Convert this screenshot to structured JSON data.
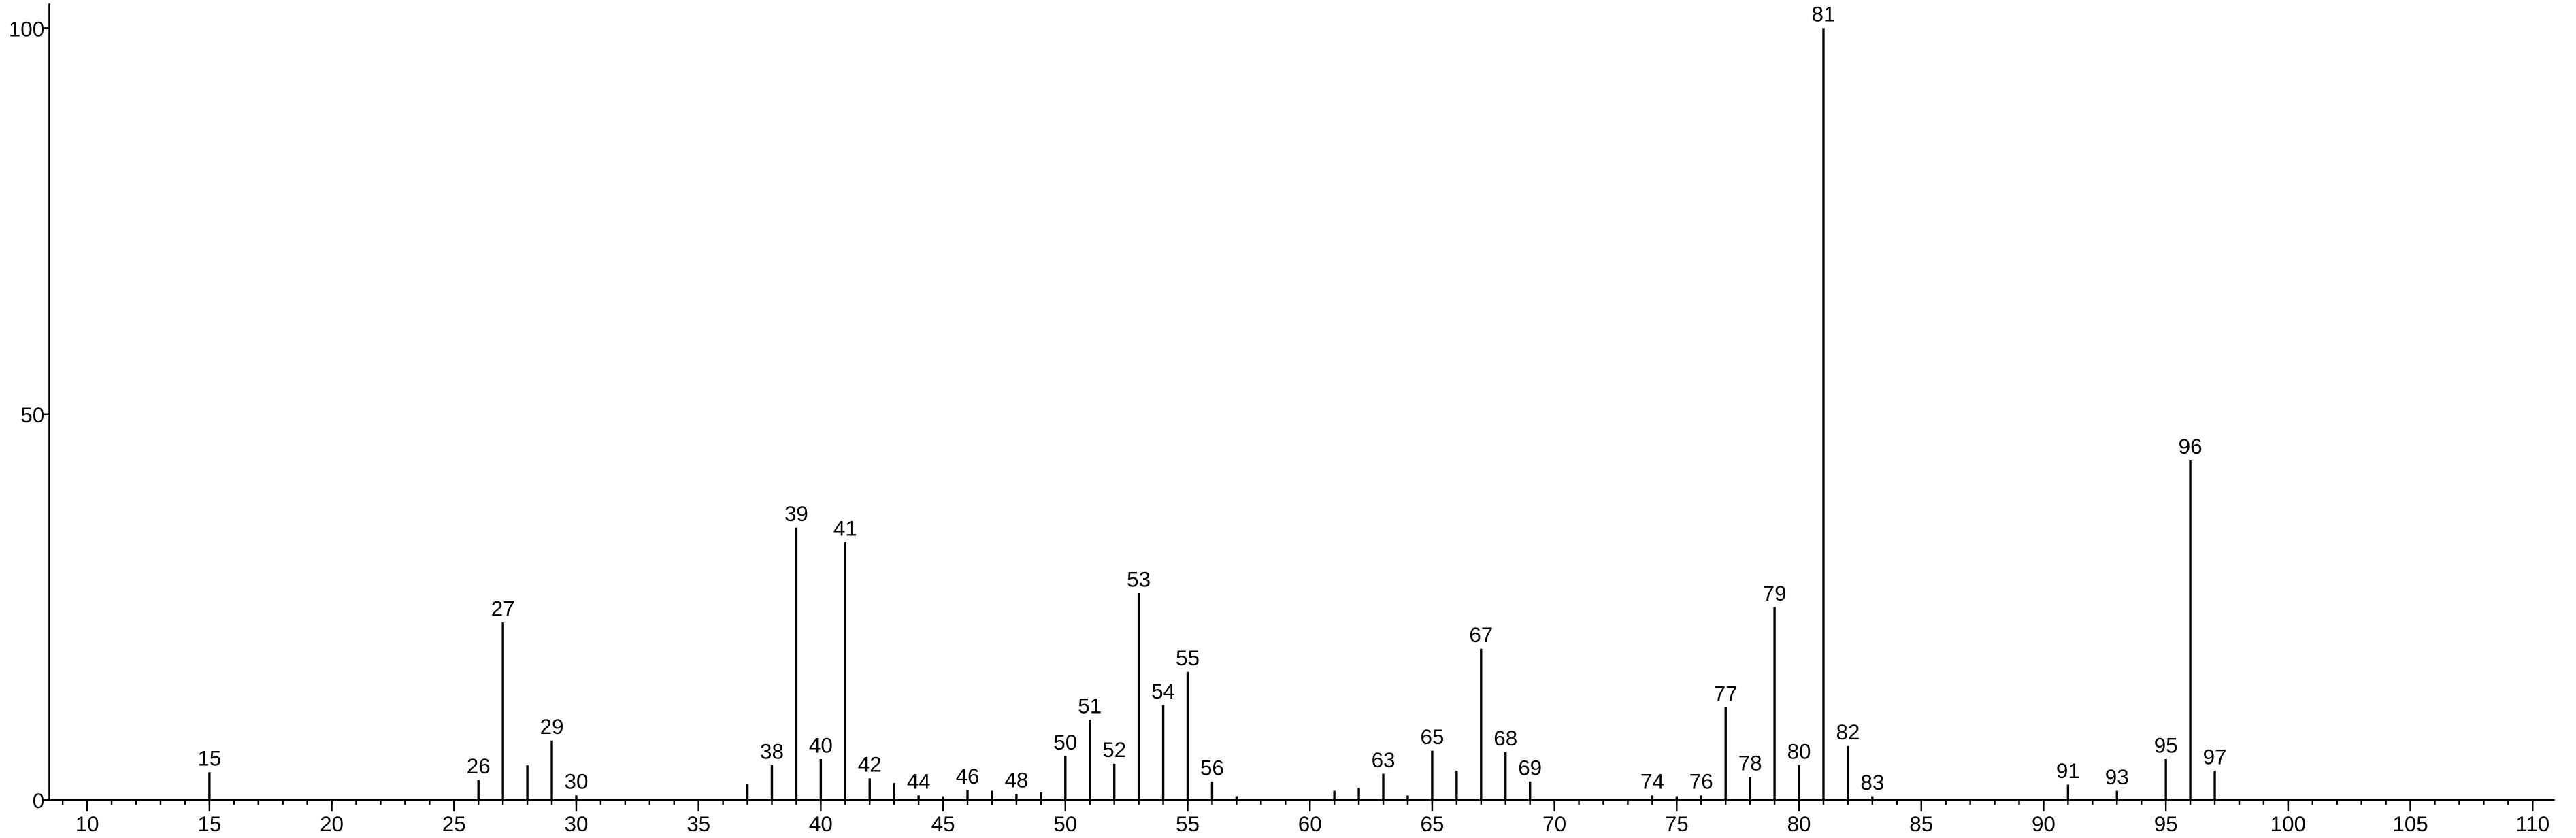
{
  "chart_data": {
    "type": "stick",
    "x": [
      15,
      26,
      27,
      28,
      29,
      30,
      37,
      38,
      39,
      40,
      41,
      42,
      43,
      44,
      45,
      46,
      47,
      48,
      49,
      50,
      51,
      52,
      53,
      54,
      55,
      56,
      57,
      61,
      62,
      63,
      64,
      65,
      66,
      67,
      68,
      69,
      74,
      75,
      76,
      77,
      78,
      79,
      80,
      81,
      82,
      83,
      91,
      93,
      95,
      96,
      97
    ],
    "values": [
      3.6,
      2.6,
      23,
      4.5,
      7.7,
      0.6,
      2.1,
      4.5,
      35.3,
      5.3,
      33.4,
      2.8,
      2.2,
      0.6,
      0.5,
      1.3,
      1.2,
      0.8,
      1.0,
      5.7,
      10.4,
      4.7,
      26.8,
      12.3,
      16.6,
      2.4,
      0.5,
      1.2,
      1.6,
      3.4,
      0.6,
      6.4,
      3.8,
      19.6,
      6.2,
      2.4,
      0.6,
      0.5,
      0.6,
      12.0,
      3.0,
      25,
      4.5,
      100,
      7,
      0.5,
      2,
      1.2,
      5.3,
      44,
      3.8
    ],
    "labeled": [
      true,
      true,
      true,
      false,
      true,
      true,
      false,
      true,
      true,
      true,
      true,
      true,
      false,
      true,
      false,
      true,
      false,
      true,
      false,
      true,
      true,
      true,
      true,
      true,
      true,
      true,
      false,
      false,
      false,
      true,
      false,
      true,
      false,
      true,
      true,
      true,
      true,
      false,
      true,
      true,
      true,
      true,
      true,
      true,
      true,
      true,
      true,
      true,
      true,
      true,
      true
    ],
    "color": "#000000",
    "xlim": [
      8.45,
      110.9
    ],
    "ylim": [
      0,
      100
    ],
    "xticks": [
      10,
      15,
      20,
      25,
      30,
      35,
      40,
      45,
      50,
      55,
      60,
      65,
      70,
      75,
      80,
      85,
      90,
      95,
      100,
      105,
      110
    ],
    "xminor_ticks": [
      9,
      10,
      11,
      12,
      13,
      14,
      15,
      16,
      17,
      18,
      19,
      20,
      21,
      22,
      23,
      24,
      25,
      26,
      27,
      28,
      29,
      30,
      31,
      32,
      33,
      34,
      35,
      36,
      37,
      38,
      39,
      40,
      41,
      42,
      43,
      44,
      45,
      46,
      47,
      48,
      49,
      50,
      51,
      52,
      53,
      54,
      55,
      56,
      57,
      58,
      59,
      60,
      61,
      62,
      63,
      64,
      65,
      66,
      67,
      68,
      69,
      70,
      71,
      72,
      73,
      74,
      75,
      76,
      77,
      78,
      79,
      80,
      81,
      82,
      83,
      84,
      85,
      86,
      87,
      88,
      89,
      90,
      91,
      92,
      93,
      94,
      95,
      96,
      97,
      98,
      99,
      100,
      101,
      102,
      103,
      104,
      105,
      106,
      107,
      108,
      109,
      110
    ],
    "yticks": [
      0,
      50,
      100
    ]
  }
}
